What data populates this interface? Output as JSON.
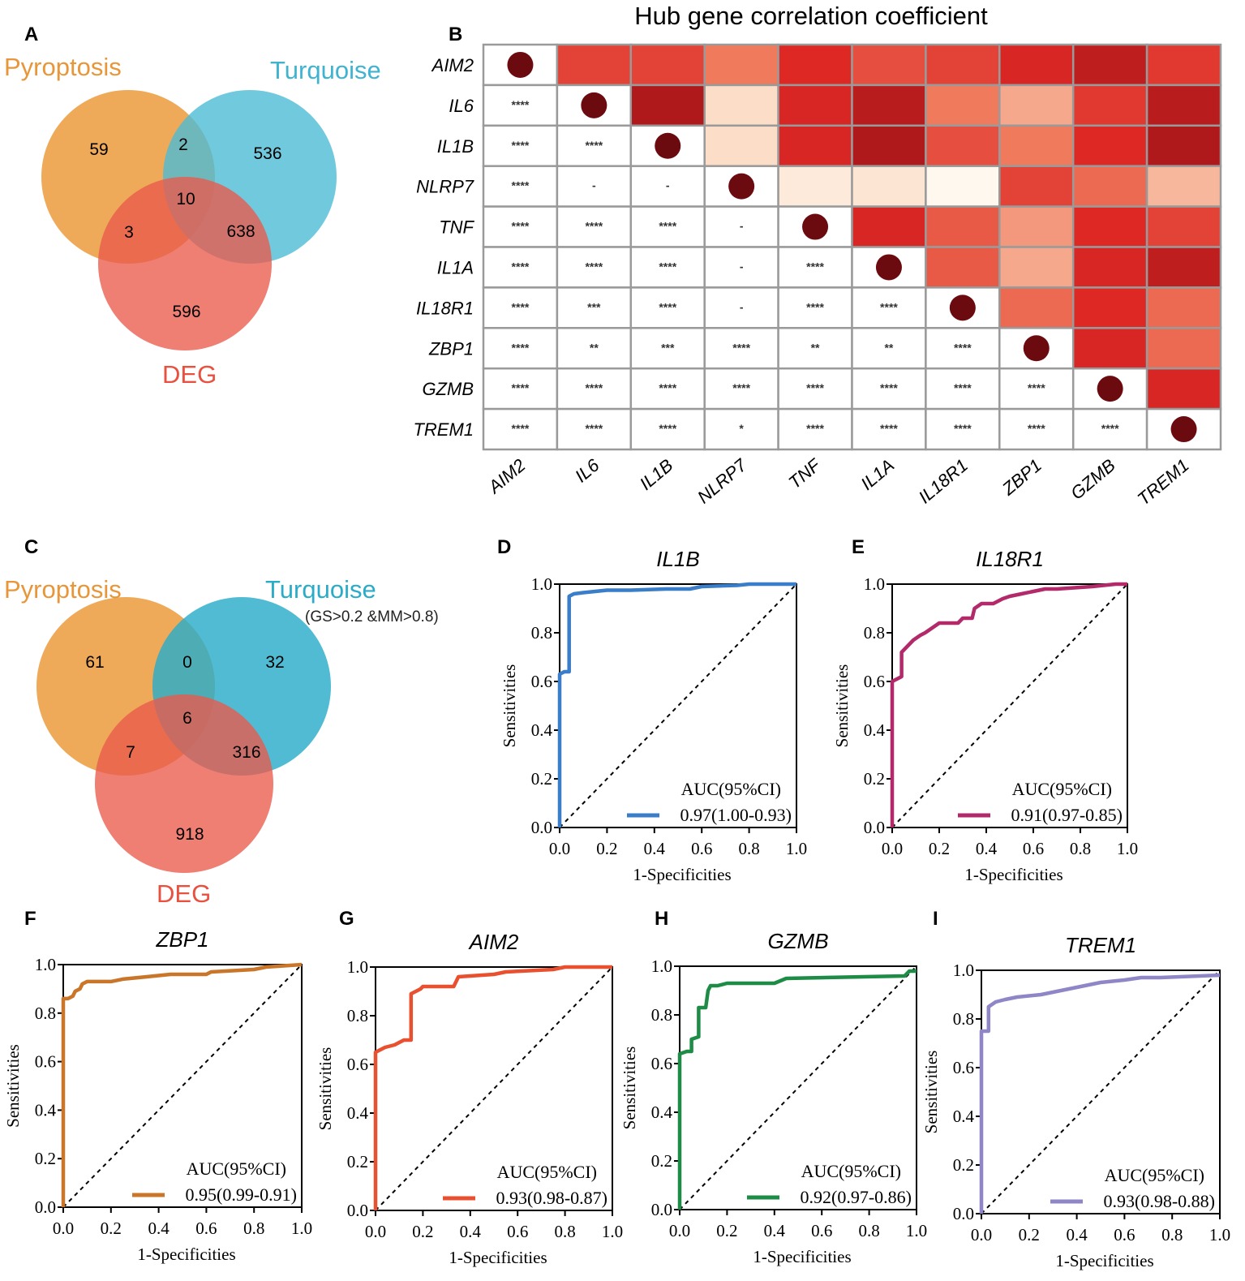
{
  "chart_data": [
    {
      "panel": "A",
      "type": "venn",
      "sets": [
        "Pyroptosis",
        "Turquoise",
        "DEG"
      ],
      "set_colors": [
        "#EB9A3C",
        "#4DBBD5",
        "#EA5A4B"
      ],
      "regions": {
        "pyroptosis_only": 59,
        "pyroptosis_turquoise": 2,
        "turquoise_only": 536,
        "all_three": 10,
        "pyroptosis_deg": 3,
        "turquoise_deg": 638,
        "deg_only": 596
      }
    },
    {
      "panel": "B",
      "type": "heatmap",
      "title": "Hub gene correlation coefficient",
      "genes": [
        "AIM2",
        "IL6",
        "IL1B",
        "NLRP7",
        "TNF",
        "IL1A",
        "IL18R1",
        "ZBP1",
        "GZMB",
        "TREM1"
      ],
      "upper_intensity": [
        [
          null,
          0.72,
          0.72,
          0.55,
          0.8,
          0.68,
          0.72,
          0.82,
          0.9,
          0.75
        ],
        [
          null,
          null,
          0.95,
          0.2,
          0.82,
          0.92,
          0.55,
          0.4,
          0.75,
          0.92
        ],
        [
          null,
          null,
          null,
          0.2,
          0.82,
          0.95,
          0.68,
          0.55,
          0.8,
          0.95
        ],
        [
          null,
          null,
          null,
          null,
          0.12,
          0.15,
          0.03,
          0.72,
          0.6,
          0.35
        ],
        [
          null,
          null,
          null,
          null,
          null,
          0.82,
          0.65,
          0.45,
          0.8,
          0.72
        ],
        [
          null,
          null,
          null,
          null,
          null,
          null,
          0.65,
          0.4,
          0.82,
          0.9
        ],
        [
          null,
          null,
          null,
          null,
          null,
          null,
          null,
          0.6,
          0.8,
          0.6
        ],
        [
          null,
          null,
          null,
          null,
          null,
          null,
          null,
          null,
          0.82,
          0.6
        ],
        [
          null,
          null,
          null,
          null,
          null,
          null,
          null,
          null,
          null,
          0.82
        ],
        [
          null,
          null,
          null,
          null,
          null,
          null,
          null,
          null,
          null,
          null
        ]
      ],
      "lower_significance": [
        [],
        [
          "****"
        ],
        [
          "****",
          "****"
        ],
        [
          "****",
          "-",
          "-"
        ],
        [
          "****",
          "****",
          "****",
          "-"
        ],
        [
          "****",
          "****",
          "****",
          "-",
          "****"
        ],
        [
          "****",
          "***",
          "****",
          "-",
          "****",
          "****"
        ],
        [
          "****",
          "**",
          "***",
          "****",
          "**",
          "**",
          "****"
        ],
        [
          "****",
          "****",
          "****",
          "****",
          "****",
          "****",
          "****",
          "****"
        ],
        [
          "****",
          "****",
          "****",
          "*",
          "****",
          "****",
          "****",
          "****",
          "****"
        ]
      ]
    },
    {
      "panel": "C",
      "type": "venn",
      "sets": [
        "Pyroptosis",
        "Turquoise",
        "DEG"
      ],
      "turquoise_note": "(GS>0.2 &MM>0.8)",
      "set_colors": [
        "#EB9A3C",
        "#2AACC8",
        "#EA5A4B"
      ],
      "regions": {
        "pyroptosis_only": 61,
        "pyroptosis_turquoise": 0,
        "turquoise_only": 32,
        "all_three": 6,
        "pyroptosis_deg": 7,
        "turquoise_deg": 316,
        "deg_only": 918
      }
    },
    {
      "panel": "D",
      "type": "line",
      "title": "IL1B",
      "color": "#3A7DC9",
      "xlabel": "1-Specificities",
      "ylabel": "Sensitivities",
      "xlim": [
        0,
        1
      ],
      "ylim": [
        0,
        1
      ],
      "ticks": [
        "0.0",
        "0.2",
        "0.4",
        "0.6",
        "0.8",
        "1.0"
      ],
      "legend_title": "AUC(95%CI)",
      "legend_value": "0.97(1.00-0.93)",
      "x": [
        0,
        0,
        0.02,
        0.04,
        0.04,
        0.06,
        0.1,
        0.15,
        0.2,
        0.3,
        0.45,
        0.55,
        0.6,
        0.75,
        0.8,
        1
      ],
      "y": [
        0,
        0.63,
        0.64,
        0.64,
        0.95,
        0.96,
        0.965,
        0.97,
        0.975,
        0.975,
        0.98,
        0.98,
        0.99,
        0.995,
        1,
        1
      ]
    },
    {
      "panel": "E",
      "type": "line",
      "title": "IL18R1",
      "color": "#B22A6A",
      "xlabel": "1-Specificities",
      "ylabel": "Sensitivities",
      "xlim": [
        0,
        1
      ],
      "ylim": [
        0,
        1
      ],
      "ticks": [
        "0.0",
        "0.2",
        "0.4",
        "0.6",
        "0.8",
        "1.0"
      ],
      "legend_title": "AUC(95%CI)",
      "legend_value": "0.91(0.97-0.85)",
      "x": [
        0,
        0,
        0.02,
        0.04,
        0.04,
        0.07,
        0.09,
        0.12,
        0.14,
        0.17,
        0.2,
        0.28,
        0.3,
        0.34,
        0.35,
        0.38,
        0.43,
        0.47,
        0.5,
        0.55,
        0.6,
        0.65,
        0.7,
        0.85,
        0.95,
        1
      ],
      "y": [
        0,
        0.6,
        0.61,
        0.62,
        0.72,
        0.75,
        0.77,
        0.79,
        0.8,
        0.82,
        0.84,
        0.84,
        0.86,
        0.86,
        0.9,
        0.92,
        0.92,
        0.94,
        0.95,
        0.96,
        0.97,
        0.98,
        0.98,
        0.99,
        1,
        1
      ]
    },
    {
      "panel": "F",
      "type": "line",
      "title": "ZBP1",
      "color": "#C9762A",
      "xlabel": "1-Specificities",
      "ylabel": "Sensitivities",
      "xlim": [
        0,
        1
      ],
      "ylim": [
        0,
        1
      ],
      "ticks": [
        "0.0",
        "0.2",
        "0.4",
        "0.6",
        "0.8",
        "1.0"
      ],
      "legend_title": "AUC(95%CI)",
      "legend_value": "0.95(0.99-0.91)",
      "x": [
        0,
        0,
        0.02,
        0.04,
        0.05,
        0.07,
        0.08,
        0.1,
        0.2,
        0.25,
        0.35,
        0.45,
        0.6,
        0.62,
        0.8,
        0.85,
        1
      ],
      "y": [
        0,
        0.86,
        0.86,
        0.87,
        0.89,
        0.9,
        0.92,
        0.93,
        0.93,
        0.94,
        0.95,
        0.96,
        0.96,
        0.97,
        0.98,
        0.99,
        1
      ]
    },
    {
      "panel": "G",
      "type": "line",
      "title": "AIM2",
      "color": "#E8502F",
      "xlabel": "1-Specificities",
      "ylabel": "Sensitivities",
      "xlim": [
        0,
        1
      ],
      "ylim": [
        0,
        1
      ],
      "ticks": [
        "0.0",
        "0.2",
        "0.4",
        "0.6",
        "0.8",
        "1.0"
      ],
      "legend_title": "AUC(95%CI)",
      "legend_value": "0.93(0.98-0.87)",
      "x": [
        0,
        0,
        0.04,
        0.08,
        0.12,
        0.15,
        0.15,
        0.19,
        0.2,
        0.33,
        0.35,
        0.5,
        0.55,
        0.75,
        0.8,
        1
      ],
      "y": [
        0,
        0.65,
        0.67,
        0.68,
        0.7,
        0.7,
        0.89,
        0.91,
        0.92,
        0.92,
        0.96,
        0.97,
        0.98,
        0.99,
        1,
        1
      ]
    },
    {
      "panel": "H",
      "type": "line",
      "title": "GZMB",
      "color": "#1E8C46",
      "xlabel": "1-Specificities",
      "ylabel": "Sensitivities",
      "xlim": [
        0,
        1
      ],
      "ylim": [
        0,
        1
      ],
      "ticks": [
        "0.0",
        "0.2",
        "0.4",
        "0.6",
        "0.8",
        "1.0"
      ],
      "legend_title": "AUC(95%CI)",
      "legend_value": "0.92(0.97-0.86)",
      "x": [
        0,
        0,
        0.03,
        0.05,
        0.05,
        0.08,
        0.08,
        0.11,
        0.12,
        0.13,
        0.16,
        0.2,
        0.4,
        0.45,
        0.95,
        0.97,
        1
      ],
      "y": [
        0,
        0.64,
        0.65,
        0.65,
        0.7,
        0.71,
        0.83,
        0.83,
        0.9,
        0.92,
        0.92,
        0.93,
        0.93,
        0.95,
        0.96,
        0.98,
        0.98
      ]
    },
    {
      "panel": "I",
      "type": "line",
      "title": "TREM1",
      "color": "#8E86C6",
      "xlabel": "1-Specificities",
      "ylabel": "Sensitivities",
      "xlim": [
        0,
        1
      ],
      "ylim": [
        0,
        1
      ],
      "ticks": [
        "0.0",
        "0.2",
        "0.4",
        "0.6",
        "0.8",
        "1.0"
      ],
      "legend_title": "AUC(95%CI)",
      "legend_value": "0.93(0.98-0.88)",
      "x": [
        0,
        0,
        0.03,
        0.03,
        0.06,
        0.1,
        0.15,
        0.25,
        0.35,
        0.4,
        0.5,
        0.6,
        0.67,
        0.75,
        1
      ],
      "y": [
        0,
        0.75,
        0.75,
        0.85,
        0.87,
        0.88,
        0.89,
        0.9,
        0.92,
        0.93,
        0.95,
        0.96,
        0.97,
        0.97,
        0.98
      ]
    }
  ]
}
